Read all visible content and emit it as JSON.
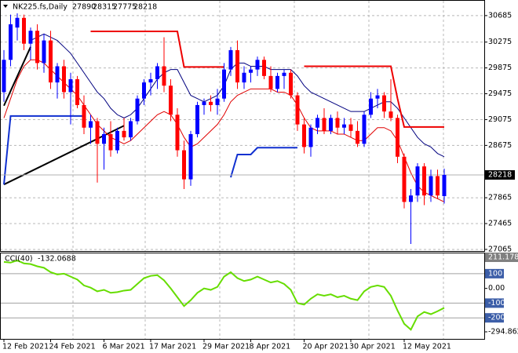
{
  "chart_data": {
    "type": "candlestick",
    "symbol": "NK225.fs,Daily",
    "up_color": "#0000ff",
    "down_color": "#ff0000",
    "ylim": [
      27040,
      30890
    ],
    "yticks": [
      30685,
      30275,
      29875,
      29475,
      29075,
      28675,
      27865,
      27465,
      27065
    ],
    "grid": true,
    "last_price": 28218,
    "categories": [
      "12 Feb 2021",
      null,
      null,
      null,
      null,
      null,
      null,
      "24 Feb 2021",
      null,
      null,
      null,
      null,
      null,
      null,
      null,
      "6 Mar 2021",
      null,
      null,
      null,
      null,
      null,
      null,
      "17 Mar 2021",
      null,
      null,
      null,
      null,
      null,
      null,
      null,
      "29 Mar 2021",
      null,
      null,
      null,
      null,
      null,
      null,
      "8 Apr 2021",
      null,
      null,
      null,
      null,
      null,
      null,
      null,
      "20 Apr 2021",
      null,
      null,
      null,
      null,
      null,
      null,
      "30 Apr 2021",
      null,
      null,
      null,
      null,
      null,
      null,
      null,
      "12 May 2021",
      null,
      null,
      null,
      null,
      null,
      null
    ],
    "ohlc": [
      [
        29500,
        30150,
        29350,
        30000
      ],
      [
        30000,
        30700,
        29900,
        30550
      ],
      [
        30500,
        30720,
        30300,
        30650
      ],
      [
        30650,
        30700,
        30150,
        30250
      ],
      [
        30250,
        30500,
        30000,
        30450
      ],
      [
        30450,
        30550,
        29850,
        29950
      ],
      [
        29950,
        30400,
        29800,
        30300
      ],
      [
        30300,
        30450,
        29550,
        29650
      ],
      [
        29650,
        29950,
        29400,
        29900
      ],
      [
        29900,
        30000,
        29400,
        29500
      ],
      [
        29500,
        29800,
        29000,
        29700
      ],
      [
        29700,
        29750,
        29250,
        29300
      ],
      [
        29300,
        29450,
        28850,
        28950
      ],
      [
        28950,
        29150,
        28700,
        29050
      ],
      [
        29050,
        29100,
        28100,
        28700
      ],
      [
        28700,
        28950,
        28300,
        28850
      ],
      [
        28850,
        29050,
        28500,
        28600
      ],
      [
        28600,
        28950,
        28550,
        28900
      ],
      [
        28900,
        29100,
        28750,
        28800
      ],
      [
        28800,
        29100,
        28750,
        29050
      ],
      [
        29050,
        29450,
        29000,
        29400
      ],
      [
        29400,
        29700,
        29300,
        29650
      ],
      [
        29650,
        29800,
        29450,
        29700
      ],
      [
        29700,
        29950,
        29550,
        29900
      ],
      [
        29900,
        30350,
        29500,
        29600
      ],
      [
        29600,
        29700,
        29050,
        29150
      ],
      [
        29150,
        29250,
        28500,
        28600
      ],
      [
        28600,
        28750,
        28000,
        28150
      ],
      [
        28150,
        28900,
        28050,
        28850
      ],
      [
        28850,
        29350,
        28800,
        29300
      ],
      [
        29300,
        29400,
        29150,
        29350
      ],
      [
        29350,
        29450,
        29200,
        29300
      ],
      [
        29300,
        29550,
        29150,
        29400
      ],
      [
        29400,
        29950,
        29350,
        29850
      ],
      [
        29850,
        30200,
        29750,
        30150
      ],
      [
        30150,
        30300,
        29550,
        29650
      ],
      [
        29650,
        29900,
        29550,
        29800
      ],
      [
        29800,
        29900,
        29650,
        29850
      ],
      [
        29850,
        30050,
        29750,
        30000
      ],
      [
        30000,
        30050,
        29700,
        29750
      ],
      [
        29750,
        29900,
        29500,
        29550
      ],
      [
        29550,
        29800,
        29500,
        29750
      ],
      [
        29750,
        29850,
        29550,
        29800
      ],
      [
        29800,
        29850,
        29400,
        29450
      ],
      [
        29450,
        29500,
        28900,
        29000
      ],
      [
        29000,
        29100,
        28550,
        28650
      ],
      [
        28650,
        29000,
        28500,
        28950
      ],
      [
        28950,
        29150,
        28850,
        29100
      ],
      [
        29100,
        29250,
        28850,
        28900
      ],
      [
        28900,
        29150,
        28850,
        29100
      ],
      [
        29100,
        29200,
        28850,
        28950
      ],
      [
        28950,
        29100,
        28850,
        29000
      ],
      [
        29000,
        29100,
        28800,
        28900
      ],
      [
        28900,
        29050,
        28650,
        28700
      ],
      [
        28700,
        29200,
        28650,
        29150
      ],
      [
        29150,
        29500,
        29100,
        29400
      ],
      [
        29400,
        29550,
        29250,
        29450
      ],
      [
        29450,
        29500,
        29100,
        29200
      ],
      [
        29200,
        29700,
        29050,
        29100
      ],
      [
        29100,
        29150,
        28400,
        28500
      ],
      [
        28500,
        28550,
        27700,
        27800
      ],
      [
        27800,
        28000,
        27150,
        27900
      ],
      [
        27900,
        28400,
        27800,
        28350
      ],
      [
        28350,
        28400,
        27750,
        27900
      ],
      [
        27900,
        28300,
        27800,
        28200
      ],
      [
        28200,
        28300,
        27850,
        27900
      ],
      [
        27890,
        28315,
        27775,
        28218
      ]
    ],
    "series": [
      {
        "color": "#00007f",
        "width": 1,
        "values": [
          null,
          null,
          null,
          null,
          30300,
          30350,
          30400,
          30350,
          30300,
          30200,
          30100,
          29950,
          29800,
          29650,
          29500,
          29400,
          29250,
          29150,
          29100,
          29150,
          29250,
          29400,
          29550,
          29700,
          29800,
          29850,
          29850,
          29650,
          29450,
          29400,
          29350,
          29400,
          29450,
          29600,
          29850,
          29950,
          29950,
          29900,
          29900,
          29900,
          29850,
          29850,
          29850,
          29850,
          29750,
          29600,
          29500,
          29450,
          29400,
          29350,
          29300,
          29250,
          29200,
          29200,
          29200,
          29250,
          29300,
          29350,
          29350,
          29250,
          29100,
          28950,
          28800,
          28700,
          28650,
          28550,
          28500
        ]
      },
      {
        "color": "#e00000",
        "width": 1,
        "values": [
          29100,
          29400,
          29700,
          29900,
          30000,
          30000,
          29950,
          29850,
          29750,
          29650,
          29550,
          29450,
          29300,
          29150,
          29000,
          28900,
          28800,
          28750,
          28700,
          28750,
          28850,
          28950,
          29050,
          29150,
          29200,
          29150,
          29000,
          28800,
          28650,
          28700,
          28800,
          28900,
          29000,
          29150,
          29350,
          29450,
          29500,
          29550,
          29550,
          29550,
          29550,
          29500,
          29500,
          29450,
          29300,
          29100,
          28950,
          28900,
          28900,
          28900,
          28850,
          28850,
          28800,
          28750,
          28750,
          28850,
          28950,
          28950,
          28900,
          28750,
          28500,
          28250,
          28050,
          27950,
          27900,
          27850,
          27800
        ]
      },
      {
        "color": "#ee0000",
        "width": 2,
        "values": [
          null,
          null,
          null,
          null,
          null,
          null,
          null,
          null,
          null,
          null,
          null,
          null,
          null,
          30440,
          30440,
          30440,
          30440,
          30440,
          30440,
          30440,
          30440,
          30440,
          30440,
          30440,
          30440,
          30440,
          30440,
          29890,
          29890,
          29890,
          29890,
          29890,
          29890,
          29890,
          null,
          null,
          null,
          null,
          null,
          null,
          null,
          null,
          null,
          null,
          null,
          29900,
          29900,
          29900,
          29900,
          29900,
          29900,
          29900,
          29900,
          29900,
          29900,
          29900,
          29900,
          29900,
          29900,
          29400,
          28960,
          28960,
          28960,
          28960,
          28960,
          28960,
          28960
        ]
      },
      {
        "color": "#1030d0",
        "width": 2,
        "values": [
          28070,
          29130,
          29130,
          29130,
          29130,
          29130,
          29130,
          29130,
          29130,
          29130,
          29130,
          29130,
          29130,
          null,
          null,
          null,
          null,
          null,
          null,
          null,
          null,
          null,
          null,
          null,
          null,
          null,
          null,
          null,
          null,
          null,
          null,
          null,
          null,
          null,
          28180,
          28534,
          28534,
          28534,
          28640,
          28640,
          28640,
          28640,
          28640,
          28640,
          28640,
          null,
          null,
          null,
          null,
          null,
          null,
          null,
          null,
          null,
          null,
          null,
          null,
          null,
          null,
          null,
          null,
          null,
          null,
          null,
          null,
          null,
          null
        ]
      }
    ],
    "trendlines": [
      {
        "color": "#000000",
        "from": [
          0,
          29290
        ],
        "to": [
          4,
          30200
        ]
      },
      {
        "color": "#000000",
        "from": [
          0,
          28070
        ],
        "to": [
          18,
          28980
        ]
      }
    ],
    "cci": {
      "title": "CCI(40)",
      "color": "#66dd00",
      "ylim": [
        -294.862,
        211.1788
      ],
      "yticks": [
        211.1788,
        100,
        {
          "value": 0,
          "label": "0.00"
        },
        -100,
        -200,
        -294.862
      ],
      "levels": [
        100,
        -100,
        -200
      ],
      "values": [
        180,
        175,
        190,
        170,
        165,
        150,
        140,
        110,
        95,
        100,
        80,
        60,
        20,
        5,
        -20,
        -10,
        -30,
        -25,
        -15,
        -10,
        30,
        70,
        85,
        90,
        55,
        0,
        -60,
        -120,
        -80,
        -30,
        0,
        -10,
        10,
        80,
        110,
        70,
        50,
        60,
        80,
        60,
        40,
        50,
        30,
        -10,
        -100,
        -110,
        -70,
        -40,
        -50,
        -40,
        -60,
        -50,
        -70,
        -80,
        -20,
        10,
        20,
        10,
        -50,
        -150,
        -240,
        -280,
        -190,
        -160,
        -175,
        -155,
        -132.0688
      ]
    }
  }
}
